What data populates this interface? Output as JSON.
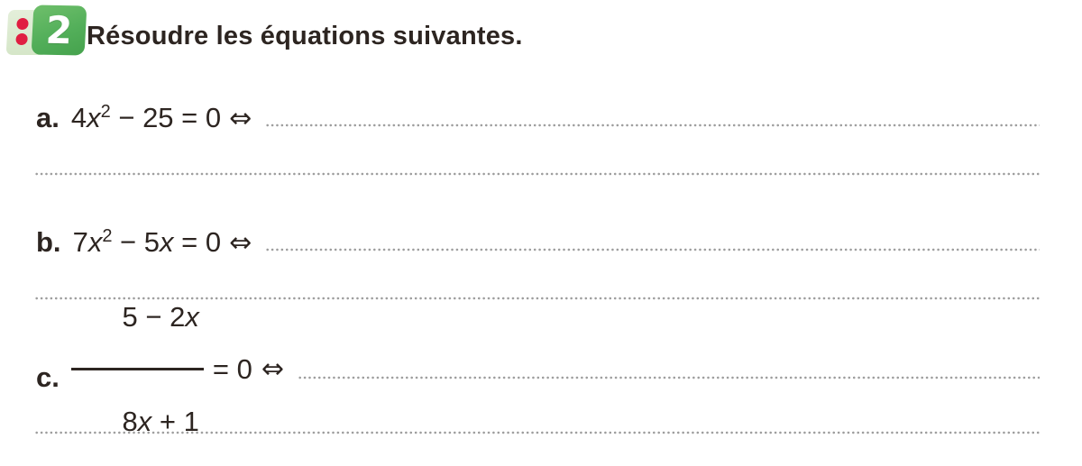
{
  "header": {
    "badge_number": "2",
    "title": "Résoudre les équations suivantes."
  },
  "colors": {
    "badge_green": "#53af5a",
    "badge_pale_green": "#d9e8cc",
    "badge_dot_red": "#e01e41",
    "text": "#2d2521",
    "dotted_line_gray": "#9d9d9d"
  },
  "symbols": {
    "equivalence_arrow": "⇔"
  },
  "exercises": {
    "a": {
      "label": "a.",
      "coefficient": "4",
      "variable": "x",
      "exponent": "2",
      "tail": " − 25 = 0"
    },
    "b": {
      "label": "b.",
      "coefficient": "7",
      "variable": "x",
      "exponent": "2",
      "mid": " − 5",
      "variable2": "x",
      "tail": " = 0"
    },
    "c": {
      "label": "c.",
      "numerator_head": "5 − 2",
      "numerator_var": "x",
      "denominator_head": "8",
      "denominator_var": "x",
      "denominator_tail": " + 1",
      "tail": "= 0"
    }
  }
}
